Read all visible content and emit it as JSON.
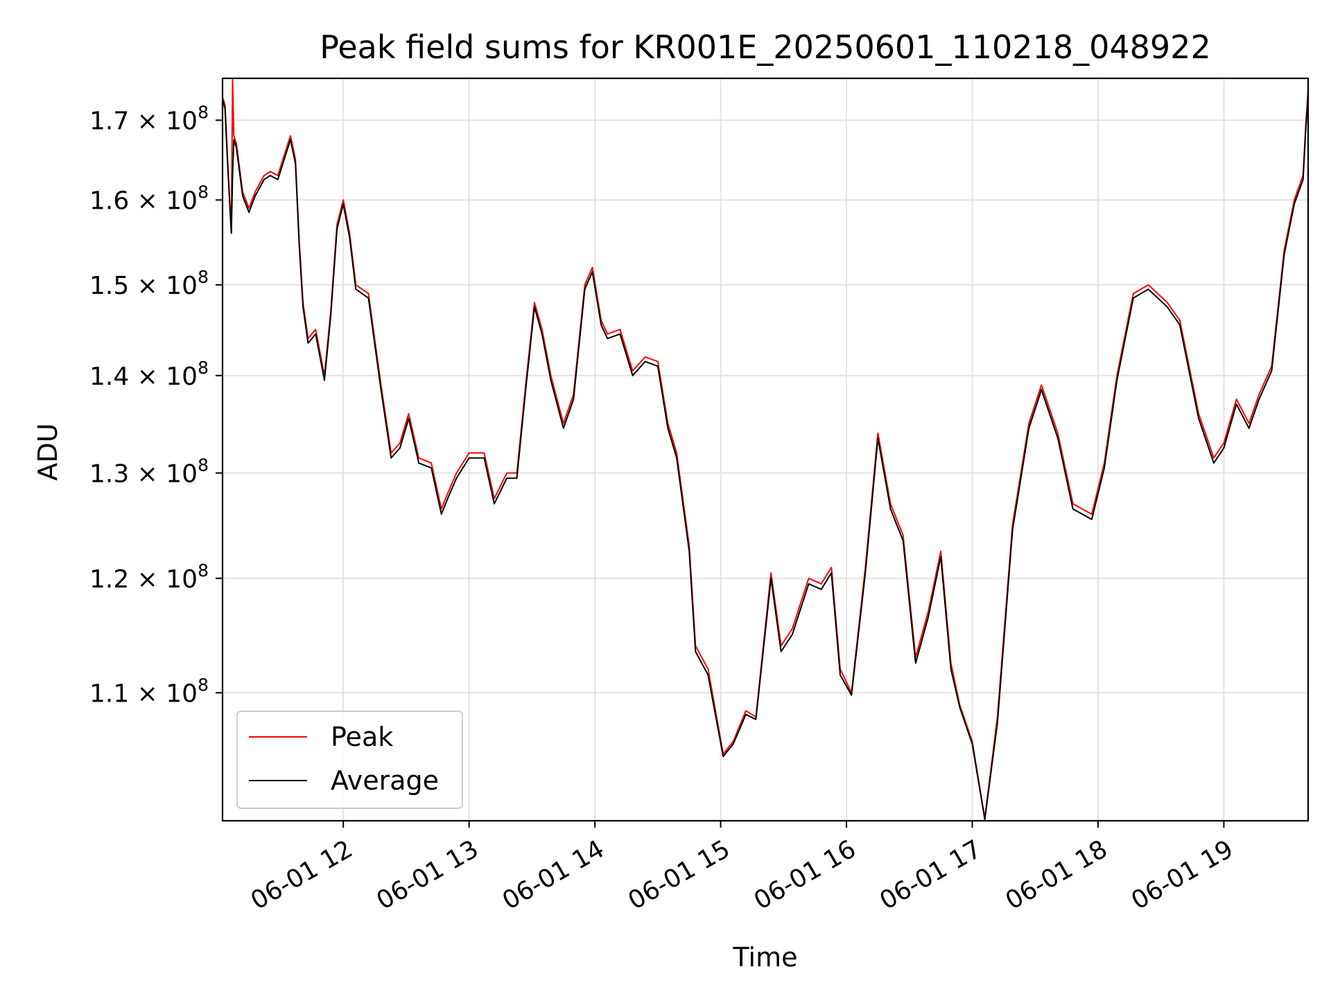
{
  "chart_data": {
    "type": "line",
    "title": "Peak field sums for KR001E_20250601_110218_048922",
    "xlabel": "Time",
    "ylabel": "ADU",
    "x_axis_kind": "hours on 2025-06-01",
    "xlim": [
      11.04,
      19.67
    ],
    "ylim": [
      99800000,
      175500000
    ],
    "y_scale": "log",
    "grid": true,
    "legend_position": "lower-left",
    "x_ticks": [
      {
        "value": 12,
        "label": "06-01 12"
      },
      {
        "value": 13,
        "label": "06-01 13"
      },
      {
        "value": 14,
        "label": "06-01 14"
      },
      {
        "value": 15,
        "label": "06-01 15"
      },
      {
        "value": 16,
        "label": "06-01 16"
      },
      {
        "value": 17,
        "label": "06-01 17"
      },
      {
        "value": 18,
        "label": "06-01 18"
      },
      {
        "value": 19,
        "label": "06-01 19"
      }
    ],
    "y_ticks": [
      {
        "value": 110000000,
        "mantissa": "1.1",
        "base": "× 10",
        "exp": "8"
      },
      {
        "value": 120000000,
        "mantissa": "1.2",
        "base": "× 10",
        "exp": "8"
      },
      {
        "value": 130000000,
        "mantissa": "1.3",
        "base": "× 10",
        "exp": "8"
      },
      {
        "value": 140000000,
        "mantissa": "1.4",
        "base": "× 10",
        "exp": "8"
      },
      {
        "value": 150000000,
        "mantissa": "1.5",
        "base": "× 10",
        "exp": "8"
      },
      {
        "value": 160000000,
        "mantissa": "1.6",
        "base": "× 10",
        "exp": "8"
      },
      {
        "value": 170000000,
        "mantissa": "1.7",
        "base": "× 10",
        "exp": "8"
      }
    ],
    "x": [
      11.04,
      11.06,
      11.08,
      11.11,
      11.12,
      11.13,
      11.15,
      11.2,
      11.25,
      11.3,
      11.37,
      11.42,
      11.48,
      11.52,
      11.58,
      11.62,
      11.65,
      11.68,
      11.72,
      11.78,
      11.85,
      11.9,
      11.95,
      12.0,
      12.05,
      12.1,
      12.2,
      12.3,
      12.38,
      12.45,
      12.52,
      12.6,
      12.7,
      12.78,
      12.83,
      12.9,
      13.0,
      13.12,
      13.2,
      13.3,
      13.38,
      13.45,
      13.52,
      13.58,
      13.65,
      13.75,
      13.83,
      13.92,
      13.98,
      14.05,
      14.1,
      14.2,
      14.3,
      14.4,
      14.5,
      14.58,
      14.65,
      14.75,
      14.8,
      14.9,
      15.02,
      15.1,
      15.2,
      15.28,
      15.4,
      15.48,
      15.57,
      15.7,
      15.8,
      15.88,
      15.95,
      16.04,
      16.15,
      16.25,
      16.35,
      16.45,
      16.55,
      16.65,
      16.75,
      16.83,
      16.9,
      17.0,
      17.1,
      17.2,
      17.32,
      17.45,
      17.55,
      17.68,
      17.8,
      17.95,
      18.05,
      18.15,
      18.28,
      18.4,
      18.55,
      18.65,
      18.8,
      18.92,
      19.0,
      19.1,
      19.2,
      19.28,
      19.38,
      19.48,
      19.56,
      19.63,
      19.65,
      19.67
    ],
    "series": [
      {
        "name": "Peak",
        "color": "#ff0000",
        "values": [
          173000000,
          172000000,
          165000000,
          156000000,
          175400000,
          168000000,
          167000000,
          161000000,
          159000000,
          161000000,
          163000000,
          163500000,
          163000000,
          165000000,
          168000000,
          165000000,
          155000000,
          148000000,
          144000000,
          145000000,
          140000000,
          147000000,
          157000000,
          160000000,
          156000000,
          150000000,
          149000000,
          139000000,
          132000000,
          133000000,
          136000000,
          131500000,
          131000000,
          126500000,
          128000000,
          130000000,
          132000000,
          132000000,
          127500000,
          130000000,
          130000000,
          139000000,
          148000000,
          145000000,
          140000000,
          135000000,
          138000000,
          150000000,
          152000000,
          146000000,
          144500000,
          145000000,
          140500000,
          142000000,
          141500000,
          135000000,
          132000000,
          123000000,
          114000000,
          112000000,
          105000000,
          106000000,
          108500000,
          108000000,
          120500000,
          114000000,
          115500000,
          120000000,
          119500000,
          121000000,
          112000000,
          110000000,
          121000000,
          134000000,
          127000000,
          124000000,
          113000000,
          117000000,
          122500000,
          112500000,
          109000000,
          106000000,
          100000000,
          108000000,
          125000000,
          135000000,
          139000000,
          134000000,
          127000000,
          126000000,
          131000000,
          140000000,
          149000000,
          150000000,
          148000000,
          146000000,
          136000000,
          131500000,
          133000000,
          137500000,
          135000000,
          138000000,
          141000000,
          154000000,
          160000000,
          163000000,
          169000000,
          174000000
        ]
      },
      {
        "name": "Average",
        "color": "#000000",
        "values": [
          172700000,
          171500000,
          164500000,
          156000000,
          163000000,
          167500000,
          166500000,
          160500000,
          158500000,
          160500000,
          162500000,
          163000000,
          162500000,
          164500000,
          167500000,
          164500000,
          154500000,
          147500000,
          143500000,
          144500000,
          139500000,
          146500000,
          156500000,
          159500000,
          155500000,
          149500000,
          148500000,
          138500000,
          131500000,
          132500000,
          135500000,
          131000000,
          130500000,
          126000000,
          127500000,
          129500000,
          131500000,
          131500000,
          127000000,
          129500000,
          129500000,
          138500000,
          147500000,
          144500000,
          139500000,
          134500000,
          137500000,
          149500000,
          151500000,
          145500000,
          144000000,
          144500000,
          140000000,
          141500000,
          141000000,
          134500000,
          131500000,
          122500000,
          113500000,
          111500000,
          104800000,
          105800000,
          108200000,
          107800000,
          120000000,
          113500000,
          115000000,
          119500000,
          119000000,
          120500000,
          111500000,
          109800000,
          120500000,
          133500000,
          126500000,
          123500000,
          112500000,
          116500000,
          122000000,
          112000000,
          108800000,
          105800000,
          99900000,
          107500000,
          124500000,
          134500000,
          138500000,
          133500000,
          126500000,
          125500000,
          130500000,
          139500000,
          148500000,
          149500000,
          147500000,
          145500000,
          135500000,
          131000000,
          132500000,
          137000000,
          134500000,
          137500000,
          140500000,
          153500000,
          159500000,
          162500000,
          168500000,
          173500000
        ]
      }
    ]
  }
}
